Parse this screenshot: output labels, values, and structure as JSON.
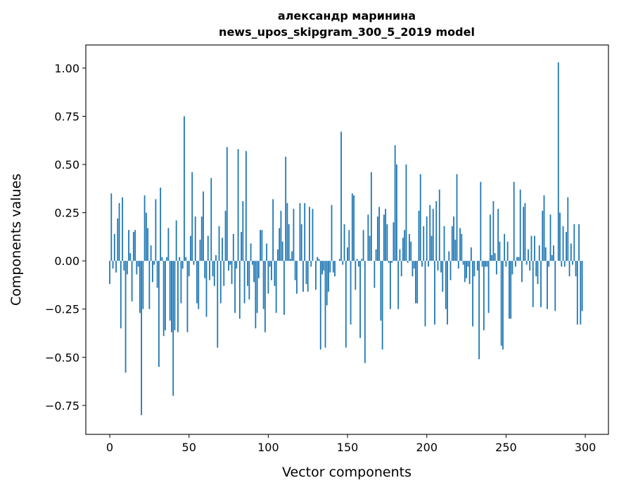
{
  "chart_data": {
    "type": "bar",
    "title": [
      "александр маринина",
      "news_upos_skipgram_300_5_2019 model"
    ],
    "xlabel": "Vector components",
    "ylabel": "Components values",
    "xlim": [
      -15.1,
      314.6
    ],
    "ylim": [
      -0.9,
      1.12
    ],
    "xticks": [
      0,
      50,
      100,
      150,
      200,
      250,
      300
    ],
    "xtick_labels": [
      "0",
      "50",
      "100",
      "150",
      "200",
      "250",
      "300"
    ],
    "yticks": [
      -0.75,
      -0.5,
      -0.25,
      0.0,
      0.25,
      0.5,
      0.75,
      1.0
    ],
    "ytick_labels": [
      "−0.75",
      "−0.50",
      "−0.25",
      "0.00",
      "0.25",
      "0.50",
      "0.75",
      "1.00"
    ],
    "grid": false,
    "bar_color": "#1f77b4",
    "values": [
      -0.12,
      0.35,
      -0.04,
      0.14,
      -0.06,
      0.22,
      0.3,
      -0.35,
      0.33,
      -0.05,
      -0.58,
      -0.07,
      0.16,
      0.04,
      -0.21,
      0.15,
      0.16,
      -0.07,
      -0.03,
      -0.27,
      -0.8,
      -0.25,
      0.34,
      0.25,
      0.17,
      -0.25,
      0.08,
      -0.11,
      -0.02,
      0.32,
      -0.14,
      -0.55,
      0.38,
      0.02,
      -0.39,
      -0.36,
      0.02,
      0.17,
      -0.31,
      -0.37,
      -0.7,
      -0.36,
      0.21,
      -0.37,
      0.02,
      -0.22,
      -0.04,
      0.75,
      0.02,
      -0.37,
      -0.08,
      0.13,
      0.46,
      -0.02,
      0.23,
      -0.22,
      -0.25,
      0.11,
      0.23,
      0.36,
      -0.09,
      -0.29,
      0.13,
      -0.1,
      0.43,
      -0.08,
      -0.13,
      0.03,
      -0.45,
      0.18,
      -0.22,
      0.12,
      -0.13,
      0.26,
      0.59,
      -0.05,
      -0.02,
      -0.12,
      0.14,
      -0.27,
      -0.04,
      0.58,
      -0.3,
      0.15,
      0.31,
      -0.22,
      0.57,
      -0.13,
      -0.2,
      0.09,
      -0.02,
      -0.11,
      -0.35,
      -0.27,
      -0.09,
      0.16,
      0.16,
      -0.25,
      -0.37,
      0.09,
      -0.17,
      -0.03,
      -0.1,
      0.32,
      -0.13,
      -0.27,
      0.06,
      0.17,
      0.26,
      0.1,
      -0.28,
      0.54,
      0.3,
      0.19,
      0.01,
      0.05,
      0.27,
      -0.1,
      -0.17,
      0.0,
      0.3,
      0.19,
      -0.16,
      0.3,
      -0.12,
      -0.16,
      0.28,
      -0.03,
      0.27,
      0.0,
      -0.15,
      0.02,
      0.01,
      -0.46,
      -0.07,
      -0.05,
      -0.45,
      -0.23,
      -0.16,
      -0.06,
      0.29,
      -0.06,
      -0.08,
      0.0,
      0.0,
      0.01,
      0.67,
      -0.02,
      0.19,
      -0.45,
      0.07,
      0.16,
      -0.33,
      0.35,
      0.34,
      -0.15,
      0.01,
      -0.03,
      -0.4,
      0.01,
      0.16,
      -0.53,
      0.0,
      0.24,
      0.13,
      0.46,
      0.0,
      -0.14,
      0.06,
      0.23,
      0.28,
      -0.31,
      -0.46,
      0.24,
      0.27,
      0.19,
      -0.01,
      -0.25,
      -0.01,
      0.2,
      0.6,
      0.5,
      -0.25,
      0.06,
      -0.08,
      0.12,
      0.16,
      0.5,
      -0.01,
      0.14,
      0.1,
      -0.08,
      -0.04,
      -0.22,
      -0.22,
      0.26,
      0.45,
      -0.03,
      0.18,
      -0.34,
      0.23,
      -0.03,
      0.29,
      0.13,
      0.27,
      -0.33,
      0.31,
      -0.05,
      0.37,
      -0.06,
      -0.16,
      0.18,
      -0.25,
      -0.33,
      0.05,
      -0.1,
      0.18,
      0.23,
      0.11,
      0.45,
      -0.04,
      0.17,
      0.14,
      -0.02,
      -0.11,
      -0.09,
      -0.03,
      -0.12,
      0.07,
      -0.34,
      -0.08,
      0.0,
      -0.05,
      -0.51,
      0.41,
      -0.03,
      -0.36,
      -0.03,
      -0.03,
      -0.27,
      0.24,
      0.03,
      0.31,
      0.04,
      -0.07,
      0.27,
      0.1,
      -0.44,
      -0.46,
      0.14,
      -0.03,
      0.1,
      -0.3,
      -0.3,
      -0.07,
      0.41,
      -0.03,
      0.02,
      0.02,
      0.37,
      -0.11,
      0.28,
      0.3,
      -0.02,
      0.06,
      -0.05,
      0.13,
      -0.24,
      0.13,
      -0.08,
      -0.12,
      0.08,
      -0.24,
      0.26,
      0.34,
      0.07,
      -0.25,
      -0.03,
      0.24,
      0.03,
      0.08,
      -0.26,
      0.0,
      1.03,
      0.25,
      -0.03,
      0.18,
      -0.03,
      0.15,
      0.33,
      -0.08,
      0.09,
      -0.02,
      0.19,
      -0.08,
      -0.33,
      0.19,
      -0.33,
      -0.26,
      0.0
    ]
  }
}
